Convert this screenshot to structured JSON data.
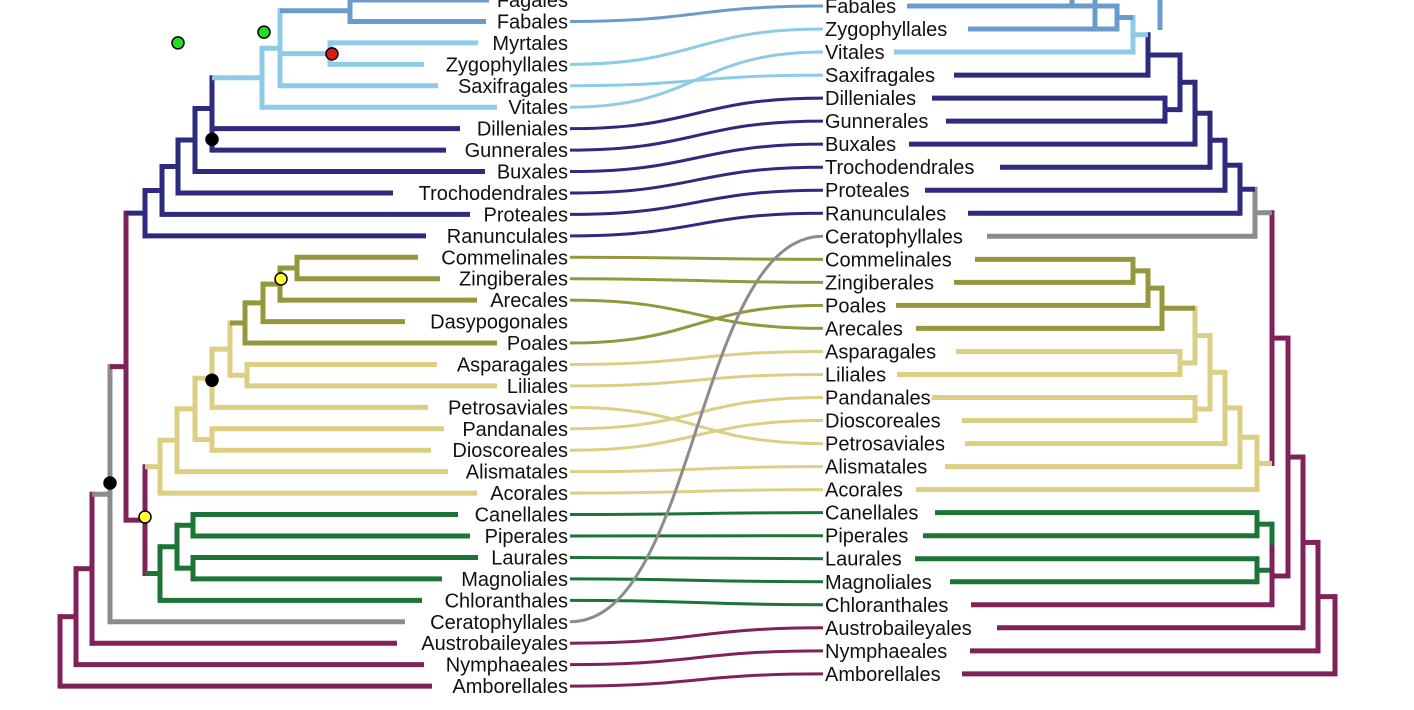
{
  "colors": {
    "rosids_light": "#8dcbe6",
    "fabids_blue": "#6b9bcd",
    "eudicot_navy": "#2e2a7e",
    "monocot_olive": "#95973d",
    "monocot_tan": "#dccf84",
    "magnoliid_green": "#1c7437",
    "ceratophyllales_gray": "#8c8c8c",
    "basal_maroon": "#80225a",
    "node_green": "#22dd22",
    "node_red": "#e01818",
    "node_yellow": "#ffff33",
    "node_black": "#000000"
  },
  "left_tree": {
    "taxa": [
      "Fagales",
      "Fabales",
      "Myrtales",
      "Zygophyllales",
      "Saxifragales",
      "Vitales",
      "Dilleniales",
      "Gunnerales",
      "Buxales",
      "Trochodendrales",
      "Proteales",
      "Ranunculales",
      "Commelinales",
      "Zingiberales",
      "Arecales",
      "Dasypogonales",
      "Poales",
      "Asparagales",
      "Liliales",
      "Petrosaviales",
      "Pandanales",
      "Dioscoreales",
      "Alismatales",
      "Acorales",
      "Canellales",
      "Piperales",
      "Laurales",
      "Magnoliales",
      "Chloranthales",
      "Ceratophyllales",
      "Austrobaileyales",
      "Nymphaeales",
      "Amborellales"
    ]
  },
  "right_tree": {
    "taxa": [
      "Fabales",
      "Zygophyllales",
      "Vitales",
      "Saxifragales",
      "Dilleniales",
      "Gunnerales",
      "Buxales",
      "Trochodendrales",
      "Proteales",
      "Ranunculales",
      "Ceratophyllales",
      "Commelinales",
      "Zingiberales",
      "Poales",
      "Arecales",
      "Asparagales",
      "Liliales",
      "Pandanales",
      "Dioscoreales",
      "Petrosaviales",
      "Alismatales",
      "Acorales",
      "Canellales",
      "Piperales",
      "Laurales",
      "Magnoliales",
      "Chloranthales",
      "Austrobaileyales",
      "Nymphaeales",
      "Amborellales"
    ]
  },
  "node_markers": [
    "green",
    "green",
    "red",
    "black",
    "yellow",
    "black",
    "black",
    "yellow"
  ]
}
